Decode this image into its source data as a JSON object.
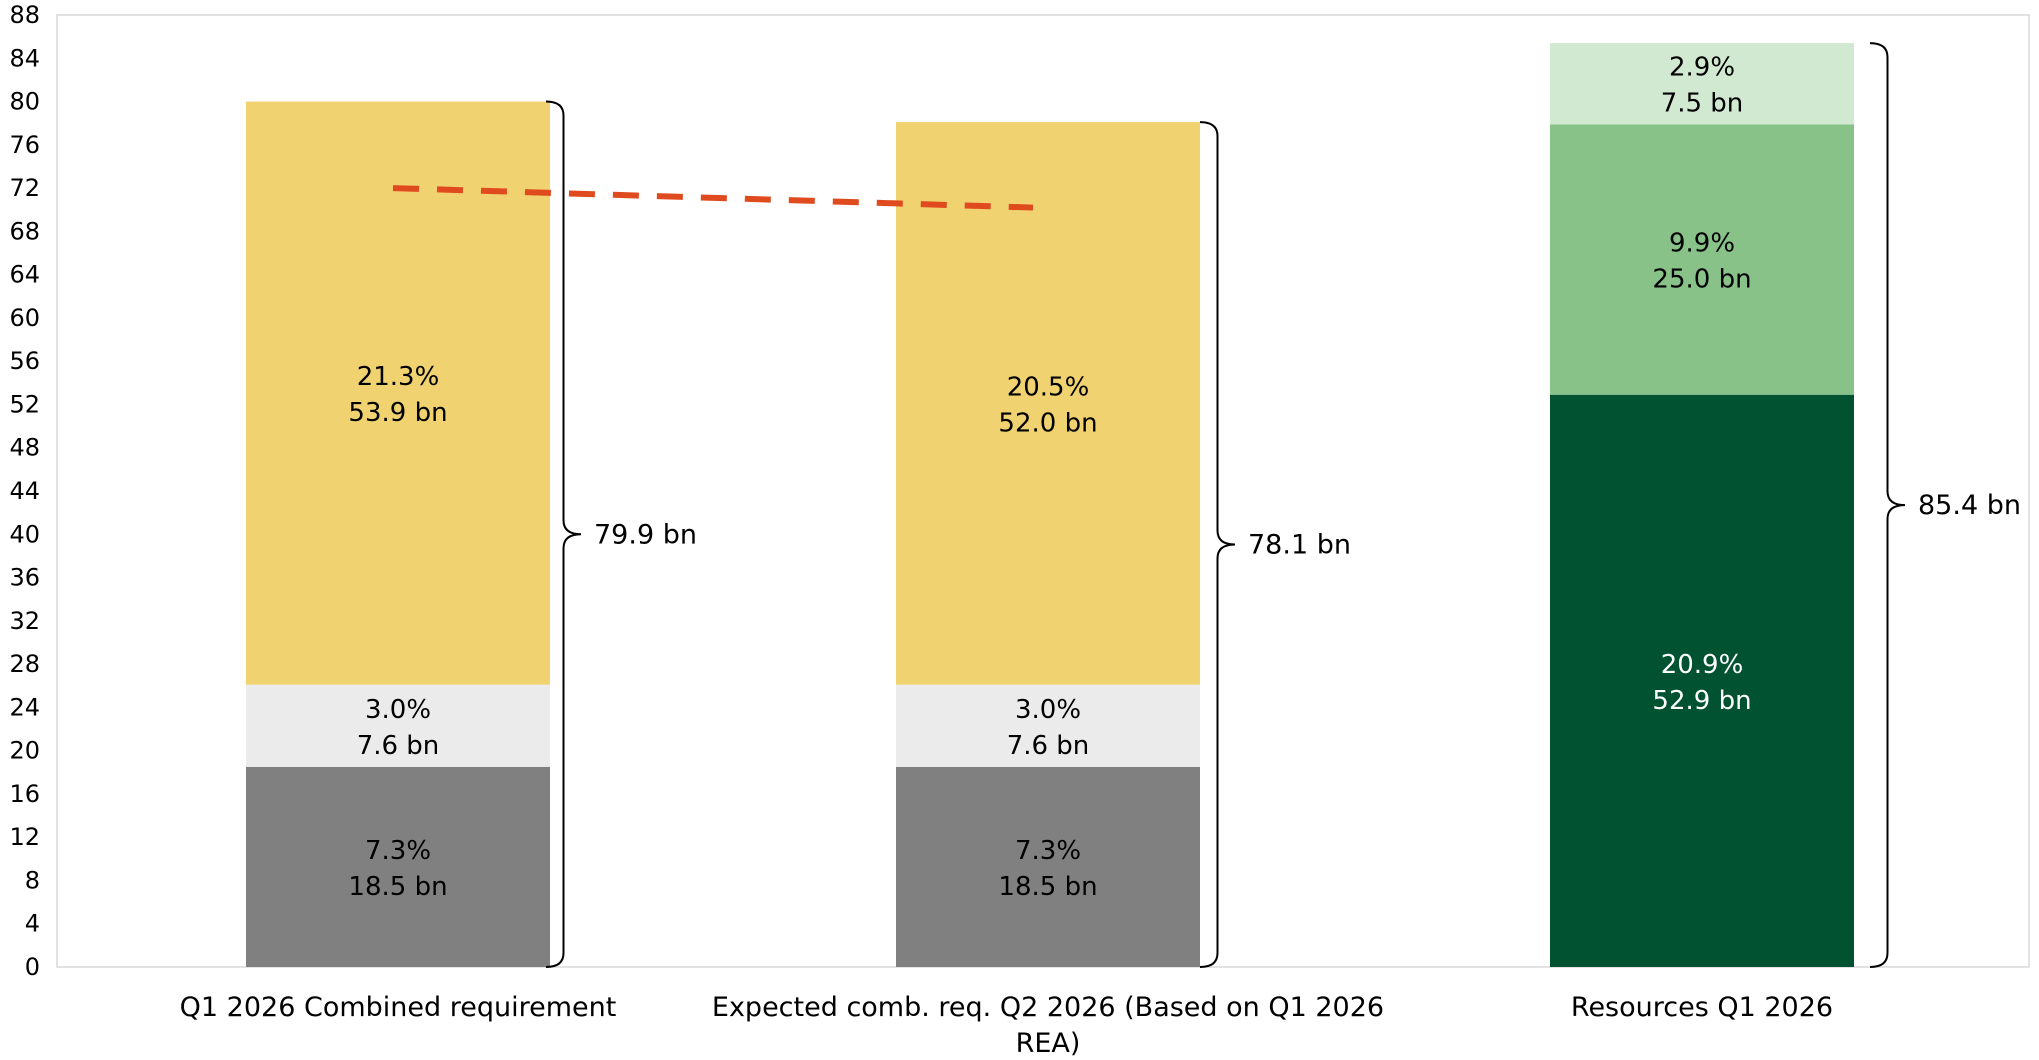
{
  "chart_data": {
    "type": "bar",
    "stacked": true,
    "title": "",
    "xlabel": "",
    "ylabel": "",
    "ylim": [
      0,
      88
    ],
    "yticks": [
      0,
      4,
      8,
      12,
      16,
      20,
      24,
      28,
      32,
      36,
      40,
      44,
      48,
      52,
      56,
      60,
      64,
      68,
      72,
      76,
      80,
      84,
      88
    ],
    "categories": [
      [
        "Q1 2026 Combined requirement"
      ],
      [
        "Expected comb. req. Q2 2026 (Based on Q1 2026",
        "REA)"
      ],
      [
        "Resources Q1 2026"
      ]
    ],
    "bars": [
      {
        "total_label": "79.9 bn",
        "segments": [
          {
            "value": 18.5,
            "pct_label": "7.3%",
            "bn_label": "18.5 bn",
            "color": "#808080",
            "text_color": "#000000"
          },
          {
            "value": 7.6,
            "pct_label": "3.0%",
            "bn_label": "7.6 bn",
            "color": "#ebebeb",
            "text_color": "#000000"
          },
          {
            "value": 53.9,
            "pct_label": "21.3%",
            "bn_label": "53.9 bn",
            "color": "#f0d270",
            "text_color": "#000000"
          }
        ]
      },
      {
        "total_label": "78.1 bn",
        "segments": [
          {
            "value": 18.5,
            "pct_label": "7.3%",
            "bn_label": "18.5 bn",
            "color": "#808080",
            "text_color": "#000000"
          },
          {
            "value": 7.6,
            "pct_label": "3.0%",
            "bn_label": "7.6 bn",
            "color": "#ebebeb",
            "text_color": "#000000"
          },
          {
            "value": 52.0,
            "pct_label": "20.5%",
            "bn_label": "52.0 bn",
            "color": "#f0d270",
            "text_color": "#000000"
          }
        ]
      },
      {
        "total_label": "85.4 bn",
        "segments": [
          {
            "value": 52.9,
            "pct_label": "20.9%",
            "bn_label": "52.9 bn",
            "color": "#005231",
            "text_color": "#ffffff"
          },
          {
            "value": 25.0,
            "pct_label": "9.9%",
            "bn_label": "25.0 bn",
            "color": "#88c289",
            "text_color": "#000000"
          },
          {
            "value": 7.5,
            "pct_label": "2.9%",
            "bn_label": "7.5 bn",
            "color": "#d1e8d1",
            "text_color": "#000000"
          }
        ]
      }
    ],
    "dashed_line": {
      "color": "#e04a1f",
      "from": {
        "bar": 0,
        "y": 72.0
      },
      "to": {
        "bar": 1,
        "y": 70.2
      }
    },
    "grid": false,
    "legend": "none"
  }
}
